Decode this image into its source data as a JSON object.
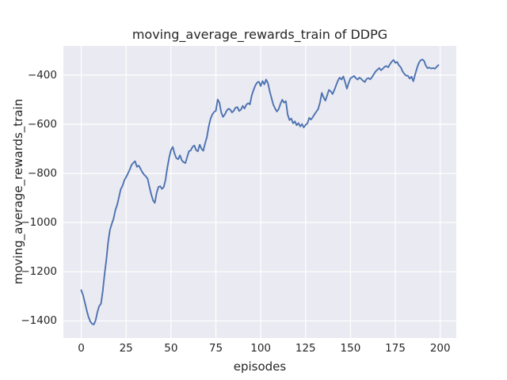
{
  "chart_data": {
    "type": "line",
    "title": "moving_average_rewards_train of DDPG",
    "xlabel": "episodes",
    "ylabel": "moving_average_rewards_train",
    "x_ticks": [
      0,
      25,
      50,
      75,
      100,
      125,
      150,
      175,
      200
    ],
    "y_ticks": [
      -400,
      -600,
      -800,
      -1000,
      -1200,
      -1400
    ],
    "xlim": [
      -9.95,
      208.95
    ],
    "ylim": [
      -1470,
      -281
    ],
    "grid": true,
    "legend": false,
    "style": {
      "figure_bg": "#ffffff",
      "axes_bg": "#eaeaf2",
      "grid_color": "#ffffff",
      "line_color": "#4c72b0",
      "text_color": "#262626",
      "line_width": 1.9
    },
    "x_start": 0,
    "x_step": 1,
    "series": [
      {
        "name": "moving_average_rewards_train",
        "values": [
          -1275,
          -1295,
          -1325,
          -1355,
          -1383,
          -1402,
          -1412,
          -1415,
          -1398,
          -1365,
          -1340,
          -1330,
          -1280,
          -1210,
          -1150,
          -1080,
          -1030,
          -1005,
          -985,
          -950,
          -928,
          -897,
          -865,
          -850,
          -828,
          -815,
          -800,
          -785,
          -766,
          -757,
          -750,
          -773,
          -768,
          -780,
          -795,
          -805,
          -812,
          -822,
          -855,
          -885,
          -910,
          -920,
          -880,
          -855,
          -852,
          -863,
          -855,
          -825,
          -775,
          -735,
          -705,
          -692,
          -720,
          -738,
          -742,
          -726,
          -746,
          -754,
          -758,
          -734,
          -710,
          -706,
          -692,
          -686,
          -705,
          -710,
          -683,
          -700,
          -708,
          -678,
          -652,
          -610,
          -578,
          -560,
          -550,
          -545,
          -499,
          -512,
          -552,
          -570,
          -560,
          -545,
          -537,
          -540,
          -552,
          -545,
          -532,
          -530,
          -546,
          -540,
          -525,
          -536,
          -520,
          -514,
          -519,
          -482,
          -460,
          -442,
          -430,
          -427,
          -444,
          -424,
          -438,
          -418,
          -432,
          -466,
          -493,
          -520,
          -536,
          -548,
          -538,
          -516,
          -500,
          -512,
          -506,
          -560,
          -583,
          -576,
          -596,
          -588,
          -604,
          -595,
          -609,
          -599,
          -613,
          -602,
          -597,
          -574,
          -581,
          -571,
          -559,
          -548,
          -538,
          -512,
          -472,
          -490,
          -504,
          -482,
          -460,
          -466,
          -477,
          -461,
          -441,
          -422,
          -410,
          -418,
          -405,
          -428,
          -455,
          -431,
          -413,
          -408,
          -403,
          -412,
          -418,
          -410,
          -415,
          -423,
          -428,
          -415,
          -412,
          -417,
          -408,
          -396,
          -385,
          -378,
          -371,
          -380,
          -374,
          -366,
          -363,
          -368,
          -355,
          -345,
          -338,
          -350,
          -346,
          -360,
          -368,
          -384,
          -395,
          -402,
          -402,
          -414,
          -406,
          -425,
          -398,
          -372,
          -352,
          -340,
          -336,
          -342,
          -362,
          -372,
          -369,
          -373,
          -371,
          -374,
          -366,
          -359
        ]
      }
    ]
  }
}
